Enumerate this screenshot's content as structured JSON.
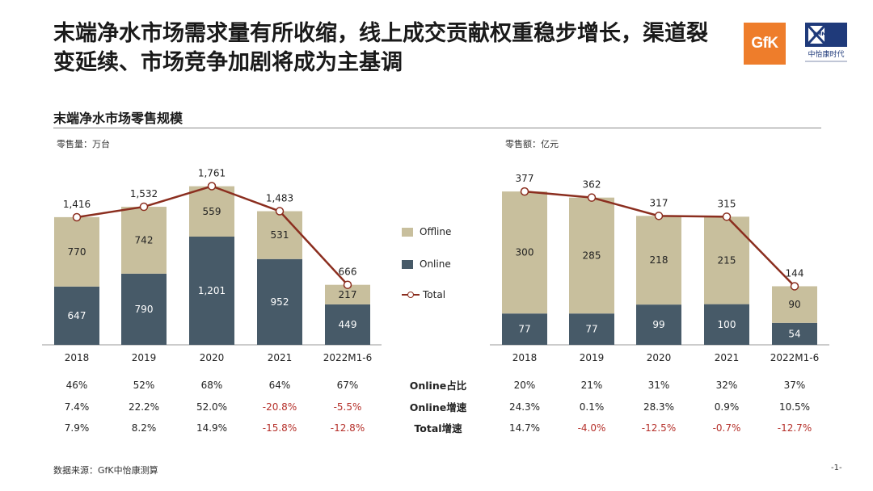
{
  "title": "末端净水市场需求量有所收缩，线上成交贡献权重稳步增长，渠道裂变延续、市场竞争加剧将成为主基调",
  "subtitle": "末端净水市场零售规模",
  "logos": {
    "gfk": "GfK",
    "cmm": "CMM",
    "cmm_cn": "中怡康时代"
  },
  "colors": {
    "offline": "#c8bf9d",
    "online": "#475a68",
    "total": "#8b2e1f",
    "negative": "#b5302a"
  },
  "legend": {
    "offline": "Offline",
    "online": "Online",
    "total": "Total"
  },
  "table_labels": [
    "Online占比",
    "Online增速",
    "Total增速"
  ],
  "source": "数据来源：GfK中怡康测算",
  "page_number": "-1-",
  "chart_data": [
    {
      "type": "bar",
      "stacked": true,
      "ylabel": "零售量：万台",
      "categories": [
        "2018",
        "2019",
        "2020",
        "2021",
        "2022M1-6"
      ],
      "series": [
        {
          "name": "Online",
          "values": [
            647,
            790,
            1201,
            952,
            449
          ],
          "labels": [
            "647",
            "790",
            "1,201",
            "952",
            "449"
          ]
        },
        {
          "name": "Offline",
          "values": [
            770,
            742,
            559,
            531,
            217
          ],
          "labels": [
            "770",
            "742",
            "559",
            "531",
            "217"
          ]
        },
        {
          "name": "Total",
          "type": "line",
          "values": [
            1416,
            1532,
            1761,
            1483,
            666
          ],
          "labels": [
            "1,416",
            "1,532",
            "1,761",
            "1,483",
            "666"
          ]
        }
      ],
      "ylim": [
        0,
        1900
      ],
      "table": {
        "online_share": [
          "46%",
          "52%",
          "68%",
          "64%",
          "67%"
        ],
        "online_growth": [
          "7.4%",
          "22.2%",
          "52.0%",
          "-20.8%",
          "-5.5%"
        ],
        "total_growth": [
          "7.9%",
          "8.2%",
          "14.9%",
          "-15.8%",
          "-12.8%"
        ]
      }
    },
    {
      "type": "bar",
      "stacked": true,
      "ylabel": "零售额：亿元",
      "categories": [
        "2018",
        "2019",
        "2020",
        "2021",
        "2022M1-6"
      ],
      "series": [
        {
          "name": "Online",
          "values": [
            77,
            77,
            99,
            100,
            54
          ],
          "labels": [
            "77",
            "77",
            "99",
            "100",
            "54"
          ]
        },
        {
          "name": "Offline",
          "values": [
            300,
            285,
            218,
            215,
            90
          ],
          "labels": [
            "300",
            "285",
            "218",
            "215",
            "90"
          ]
        },
        {
          "name": "Total",
          "type": "line",
          "values": [
            377,
            362,
            317,
            315,
            144
          ],
          "labels": [
            "377",
            "362",
            "317",
            "315",
            "144"
          ]
        }
      ],
      "ylim": [
        0,
        407
      ],
      "table": {
        "online_share": [
          "20%",
          "21%",
          "31%",
          "32%",
          "37%"
        ],
        "online_growth": [
          "24.3%",
          "0.1%",
          "28.3%",
          "0.9%",
          "10.5%"
        ],
        "total_growth": [
          "14.7%",
          "-4.0%",
          "-12.5%",
          "-0.7%",
          "-12.7%"
        ]
      }
    }
  ]
}
